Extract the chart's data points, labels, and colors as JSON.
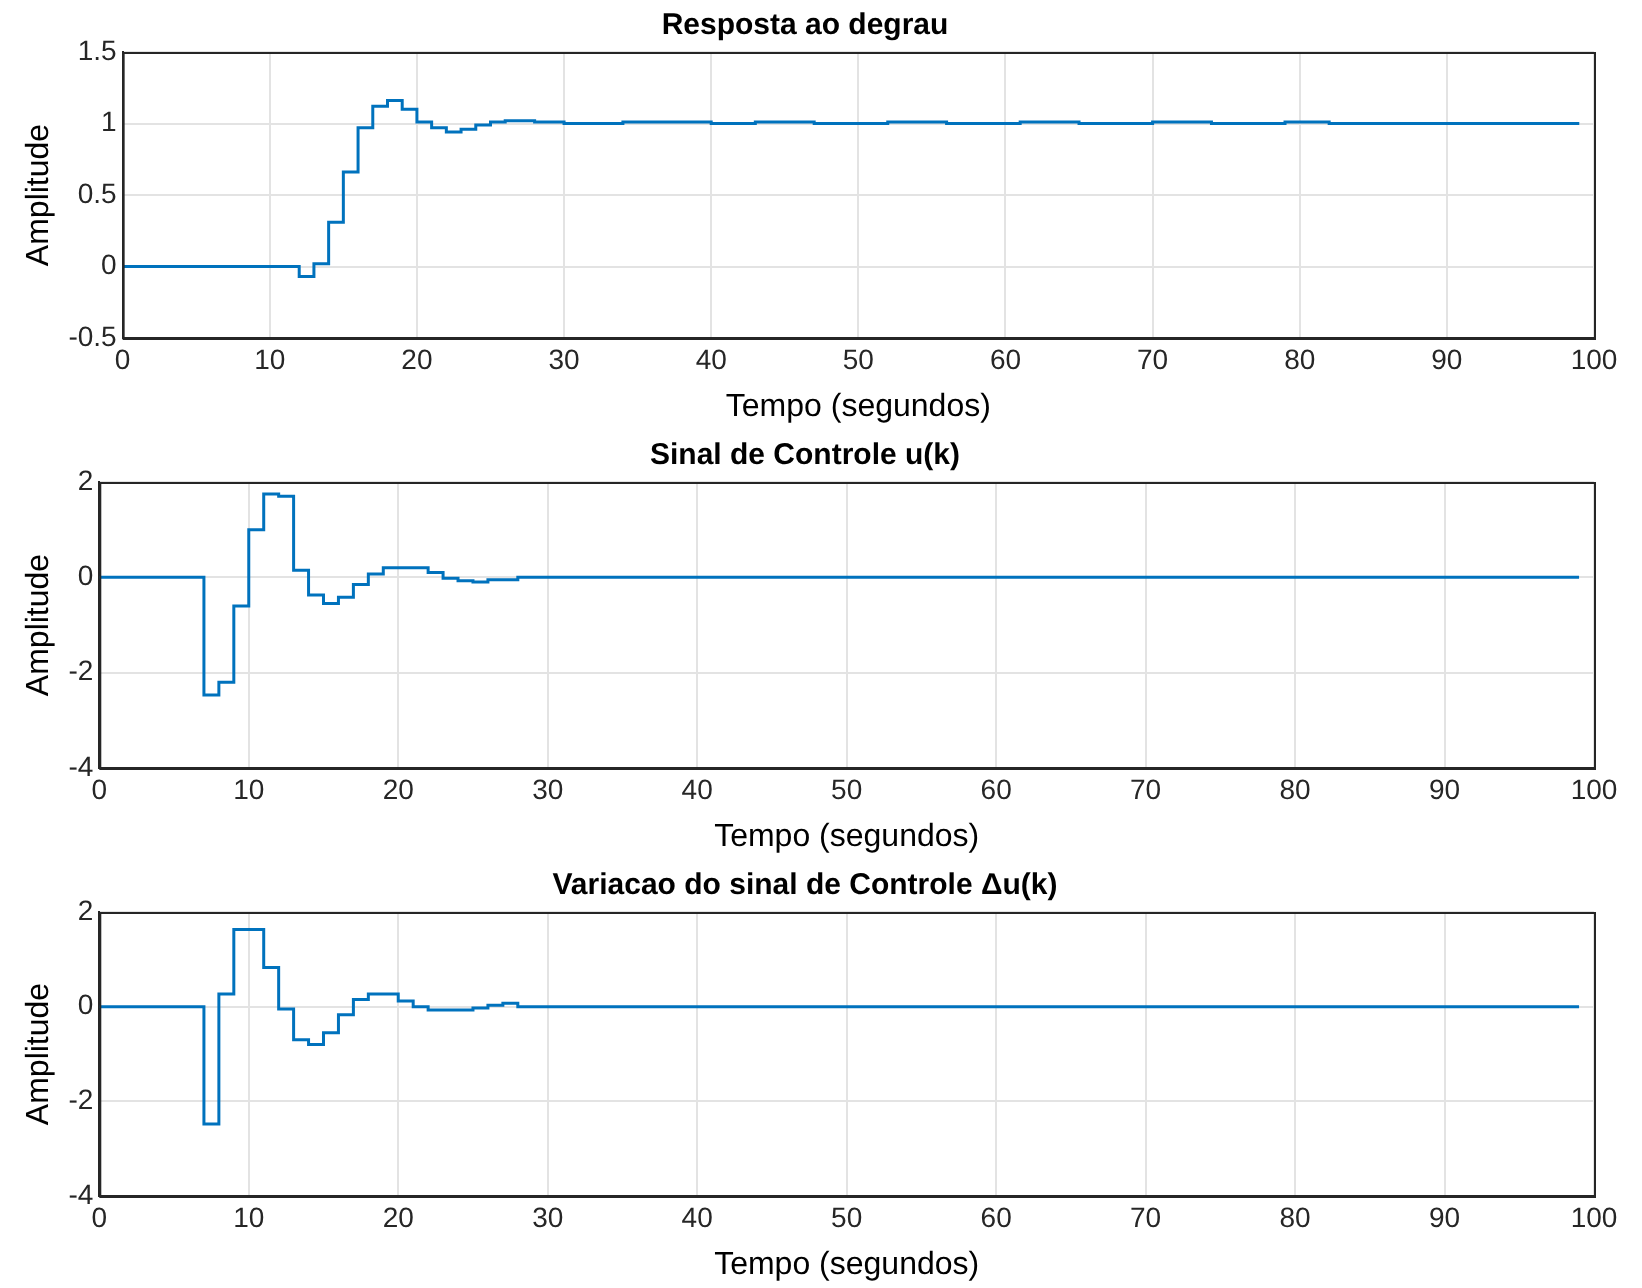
{
  "chart_data": [
    {
      "type": "step",
      "title": "Resposta ao degrau",
      "xlabel": "Tempo (segundos)",
      "ylabel": "Amplitude",
      "color": "#0072bd",
      "grid": true,
      "xlim": [
        0,
        100
      ],
      "xticks": [
        0,
        10,
        20,
        30,
        40,
        50,
        60,
        70,
        80,
        90,
        100
      ],
      "ylim": [
        -0.5,
        1.5
      ],
      "yticks": [
        -0.5,
        0,
        0.5,
        1,
        1.5
      ],
      "x": [
        0,
        12,
        13,
        14,
        15,
        16,
        17,
        18,
        19,
        20,
        21,
        22,
        23,
        24,
        25,
        26,
        28,
        30,
        34,
        40,
        43,
        47,
        52,
        56,
        61,
        65,
        70,
        74,
        79,
        82,
        99
      ],
      "values": [
        0,
        -0.07,
        0.02,
        0.31,
        0.66,
        0.97,
        1.12,
        1.16,
        1.1,
        1.01,
        0.97,
        0.94,
        0.96,
        0.99,
        1.01,
        1.02,
        1.01,
        1.0,
        1.01,
        1.0,
        1.01,
        1.0,
        1.01,
        1.0,
        1.01,
        1.0,
        1.01,
        1.0,
        1.01,
        1.0,
        1.0
      ]
    },
    {
      "type": "step",
      "title": "Sinal de Controle u(k)",
      "xlabel": "Tempo (segundos)",
      "ylabel": "Amplitude",
      "color": "#0072bd",
      "grid": true,
      "xlim": [
        0,
        100
      ],
      "xticks": [
        0,
        10,
        20,
        30,
        40,
        50,
        60,
        70,
        80,
        90,
        100
      ],
      "ylim": [
        -4,
        2
      ],
      "yticks": [
        -4,
        -2,
        0,
        2
      ],
      "x": [
        0,
        7,
        8,
        9,
        10,
        11,
        12,
        13,
        14,
        15,
        16,
        17,
        18,
        19,
        22,
        23,
        24,
        25,
        26,
        28,
        99
      ],
      "values": [
        0,
        -2.47,
        -2.2,
        -0.6,
        1.0,
        1.75,
        1.7,
        0.15,
        -0.37,
        -0.55,
        -0.42,
        -0.15,
        0.07,
        0.2,
        0.1,
        -0.02,
        -0.07,
        -0.1,
        -0.05,
        0,
        0
      ]
    },
    {
      "type": "step",
      "title": "Variacao do sinal de Controle Δu(k)",
      "xlabel": "Tempo (segundos)",
      "ylabel": "Amplitude",
      "color": "#0072bd",
      "grid": true,
      "xlim": [
        0,
        100
      ],
      "xticks": [
        0,
        10,
        20,
        30,
        40,
        50,
        60,
        70,
        80,
        90,
        100
      ],
      "ylim": [
        -4,
        2
      ],
      "yticks": [
        -4,
        -2,
        0,
        2
      ],
      "x": [
        0,
        7,
        8,
        9,
        11,
        12,
        13,
        14,
        15,
        16,
        17,
        18,
        20,
        21,
        22,
        25,
        26,
        27,
        28,
        99
      ],
      "values": [
        0,
        -2.48,
        0.27,
        1.63,
        0.83,
        -0.05,
        -0.7,
        -0.8,
        -0.55,
        -0.17,
        0.15,
        0.27,
        0.12,
        0,
        -0.07,
        -0.03,
        0.03,
        0.07,
        0,
        0
      ]
    }
  ]
}
